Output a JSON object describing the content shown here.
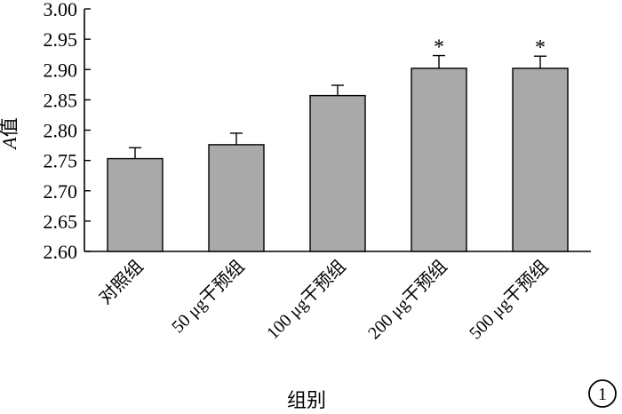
{
  "chart_data": {
    "type": "bar",
    "categories": [
      "对照组",
      "50 μg干预组",
      "100 μg干预组",
      "200 μg干预组",
      "500 μg干预组"
    ],
    "values": [
      2.753,
      2.776,
      2.857,
      2.902,
      2.902
    ],
    "errors": [
      0.018,
      0.019,
      0.017,
      0.021,
      0.02
    ],
    "significance": [
      "",
      "",
      "",
      "*",
      "*"
    ],
    "xlabel": "组别",
    "ylabel": "A值",
    "ylabel_parts": {
      "italic": "A",
      "rest": "值"
    },
    "yticks": [
      "2.60",
      "2.65",
      "2.70",
      "2.75",
      "2.80",
      "2.85",
      "2.90",
      "2.95",
      "3.00"
    ],
    "ylim": [
      2.6,
      3.0
    ],
    "grid": false,
    "bar_color": "#a9a9a9",
    "panel_label": "1"
  }
}
